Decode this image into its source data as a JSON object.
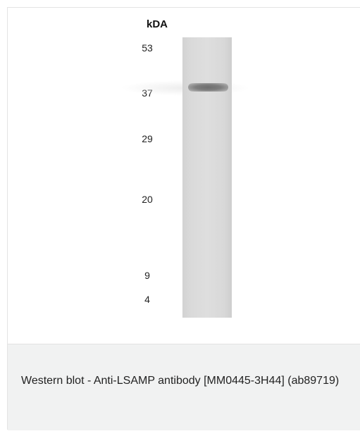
{
  "figure": {
    "unit_label": "kDA",
    "markers": [
      {
        "label": "53",
        "kda": 53
      },
      {
        "label": "37",
        "kda": 37
      },
      {
        "label": "29",
        "kda": 29
      },
      {
        "label": "20",
        "kda": 20
      },
      {
        "label": "9",
        "kda": 9
      },
      {
        "label": "4",
        "kda": 4
      }
    ],
    "band": {
      "approx_kda": 39
    }
  },
  "caption": {
    "text": "Western blot - Anti-LSAMP antibody [MM0445-3H44] (ab89719)"
  }
}
